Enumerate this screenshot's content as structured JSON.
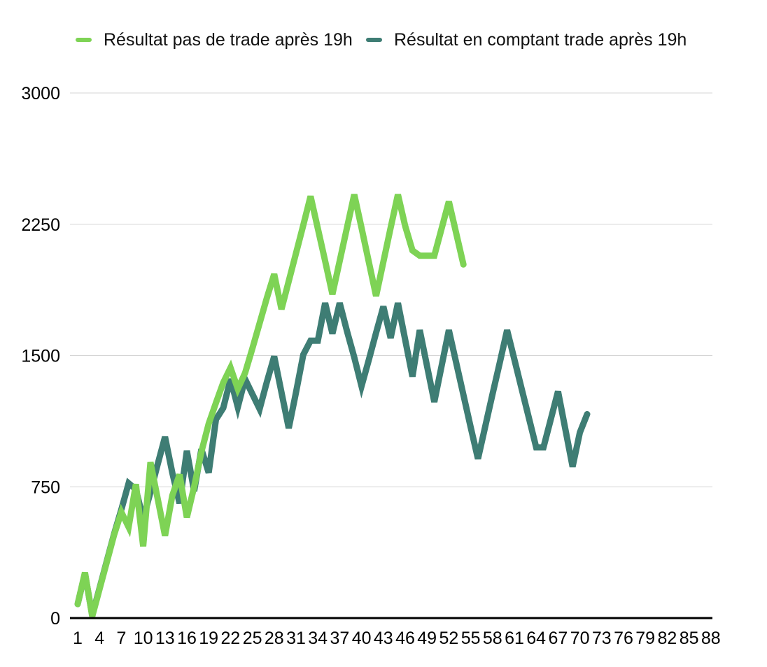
{
  "legend": {
    "items": [
      {
        "label": "Résultat pas de trade après 19h",
        "color": "#7ed355"
      },
      {
        "label": "Résultat en comptant trade après 19h",
        "color": "#3e7d74"
      }
    ]
  },
  "axes": {
    "y_tick_labels": [
      "0",
      "750",
      "1500",
      "2250",
      "3000"
    ],
    "y_tick_values": [
      0,
      750,
      1500,
      2250,
      3000
    ],
    "x_tick_labels": [
      "1",
      "4",
      "7",
      "10",
      "13",
      "16",
      "19",
      "22",
      "25",
      "28",
      "31",
      "34",
      "37",
      "40",
      "43",
      "46",
      "49",
      "52",
      "55",
      "58",
      "61",
      "64",
      "67",
      "70",
      "73",
      "76",
      "79",
      "82",
      "85",
      "88"
    ],
    "x_tick_points": [
      1,
      4,
      7,
      10,
      13,
      16,
      19,
      22,
      25,
      28,
      31,
      34,
      37,
      40,
      43,
      46,
      49,
      52,
      55,
      58,
      61,
      64,
      67,
      70,
      73,
      76,
      79,
      82,
      85,
      88
    ]
  },
  "chart_data": {
    "type": "line",
    "title": "",
    "xlabel": "",
    "ylabel": "",
    "ylim": [
      0,
      3000
    ],
    "x_points_range": [
      1,
      88
    ],
    "grid": true,
    "legend_position": "top",
    "background": "#ffffff",
    "gridline_color": "#d5d5d5",
    "axis_color": "#000000",
    "series": [
      {
        "name": "Résultat pas de trade après 19h",
        "color": "#7ed355",
        "start_x": 1,
        "values": [
          80,
          260,
          10,
          165,
          320,
          475,
          605,
          520,
          765,
          410,
          890,
          680,
          470,
          700,
          820,
          575,
          750,
          950,
          1110,
          1230,
          1345,
          1430,
          1310,
          1400,
          1540,
          1685,
          1830,
          1965,
          1765,
          1925,
          2085,
          2245,
          2410,
          2225,
          2040,
          1850,
          2040,
          2230,
          2420,
          2230,
          2035,
          1840,
          2035,
          2230,
          2420,
          2240,
          2100,
          2070,
          2070,
          2070,
          2225,
          2380,
          2200,
          2020
        ]
      },
      {
        "name": "Résultat en comptant trade après 19h",
        "color": "#3e7d74",
        "start_x": 1,
        "values": [
          80,
          255,
          15,
          170,
          325,
          480,
          620,
          770,
          735,
          565,
          720,
          880,
          1035,
          830,
          655,
          955,
          725,
          965,
          830,
          1135,
          1200,
          1365,
          1205,
          1365,
          1280,
          1195,
          1350,
          1495,
          1290,
          1085,
          1290,
          1505,
          1585,
          1585,
          1800,
          1625,
          1800,
          1640,
          1490,
          1325,
          1475,
          1630,
          1780,
          1600,
          1800,
          1590,
          1380,
          1645,
          1440,
          1235,
          1440,
          1645,
          1460,
          1275,
          1090,
          910,
          1095,
          1280,
          1460,
          1645,
          1478,
          1310,
          1143,
          975,
          975,
          1135,
          1295,
          1080,
          865,
          1060,
          1165
        ]
      }
    ]
  }
}
